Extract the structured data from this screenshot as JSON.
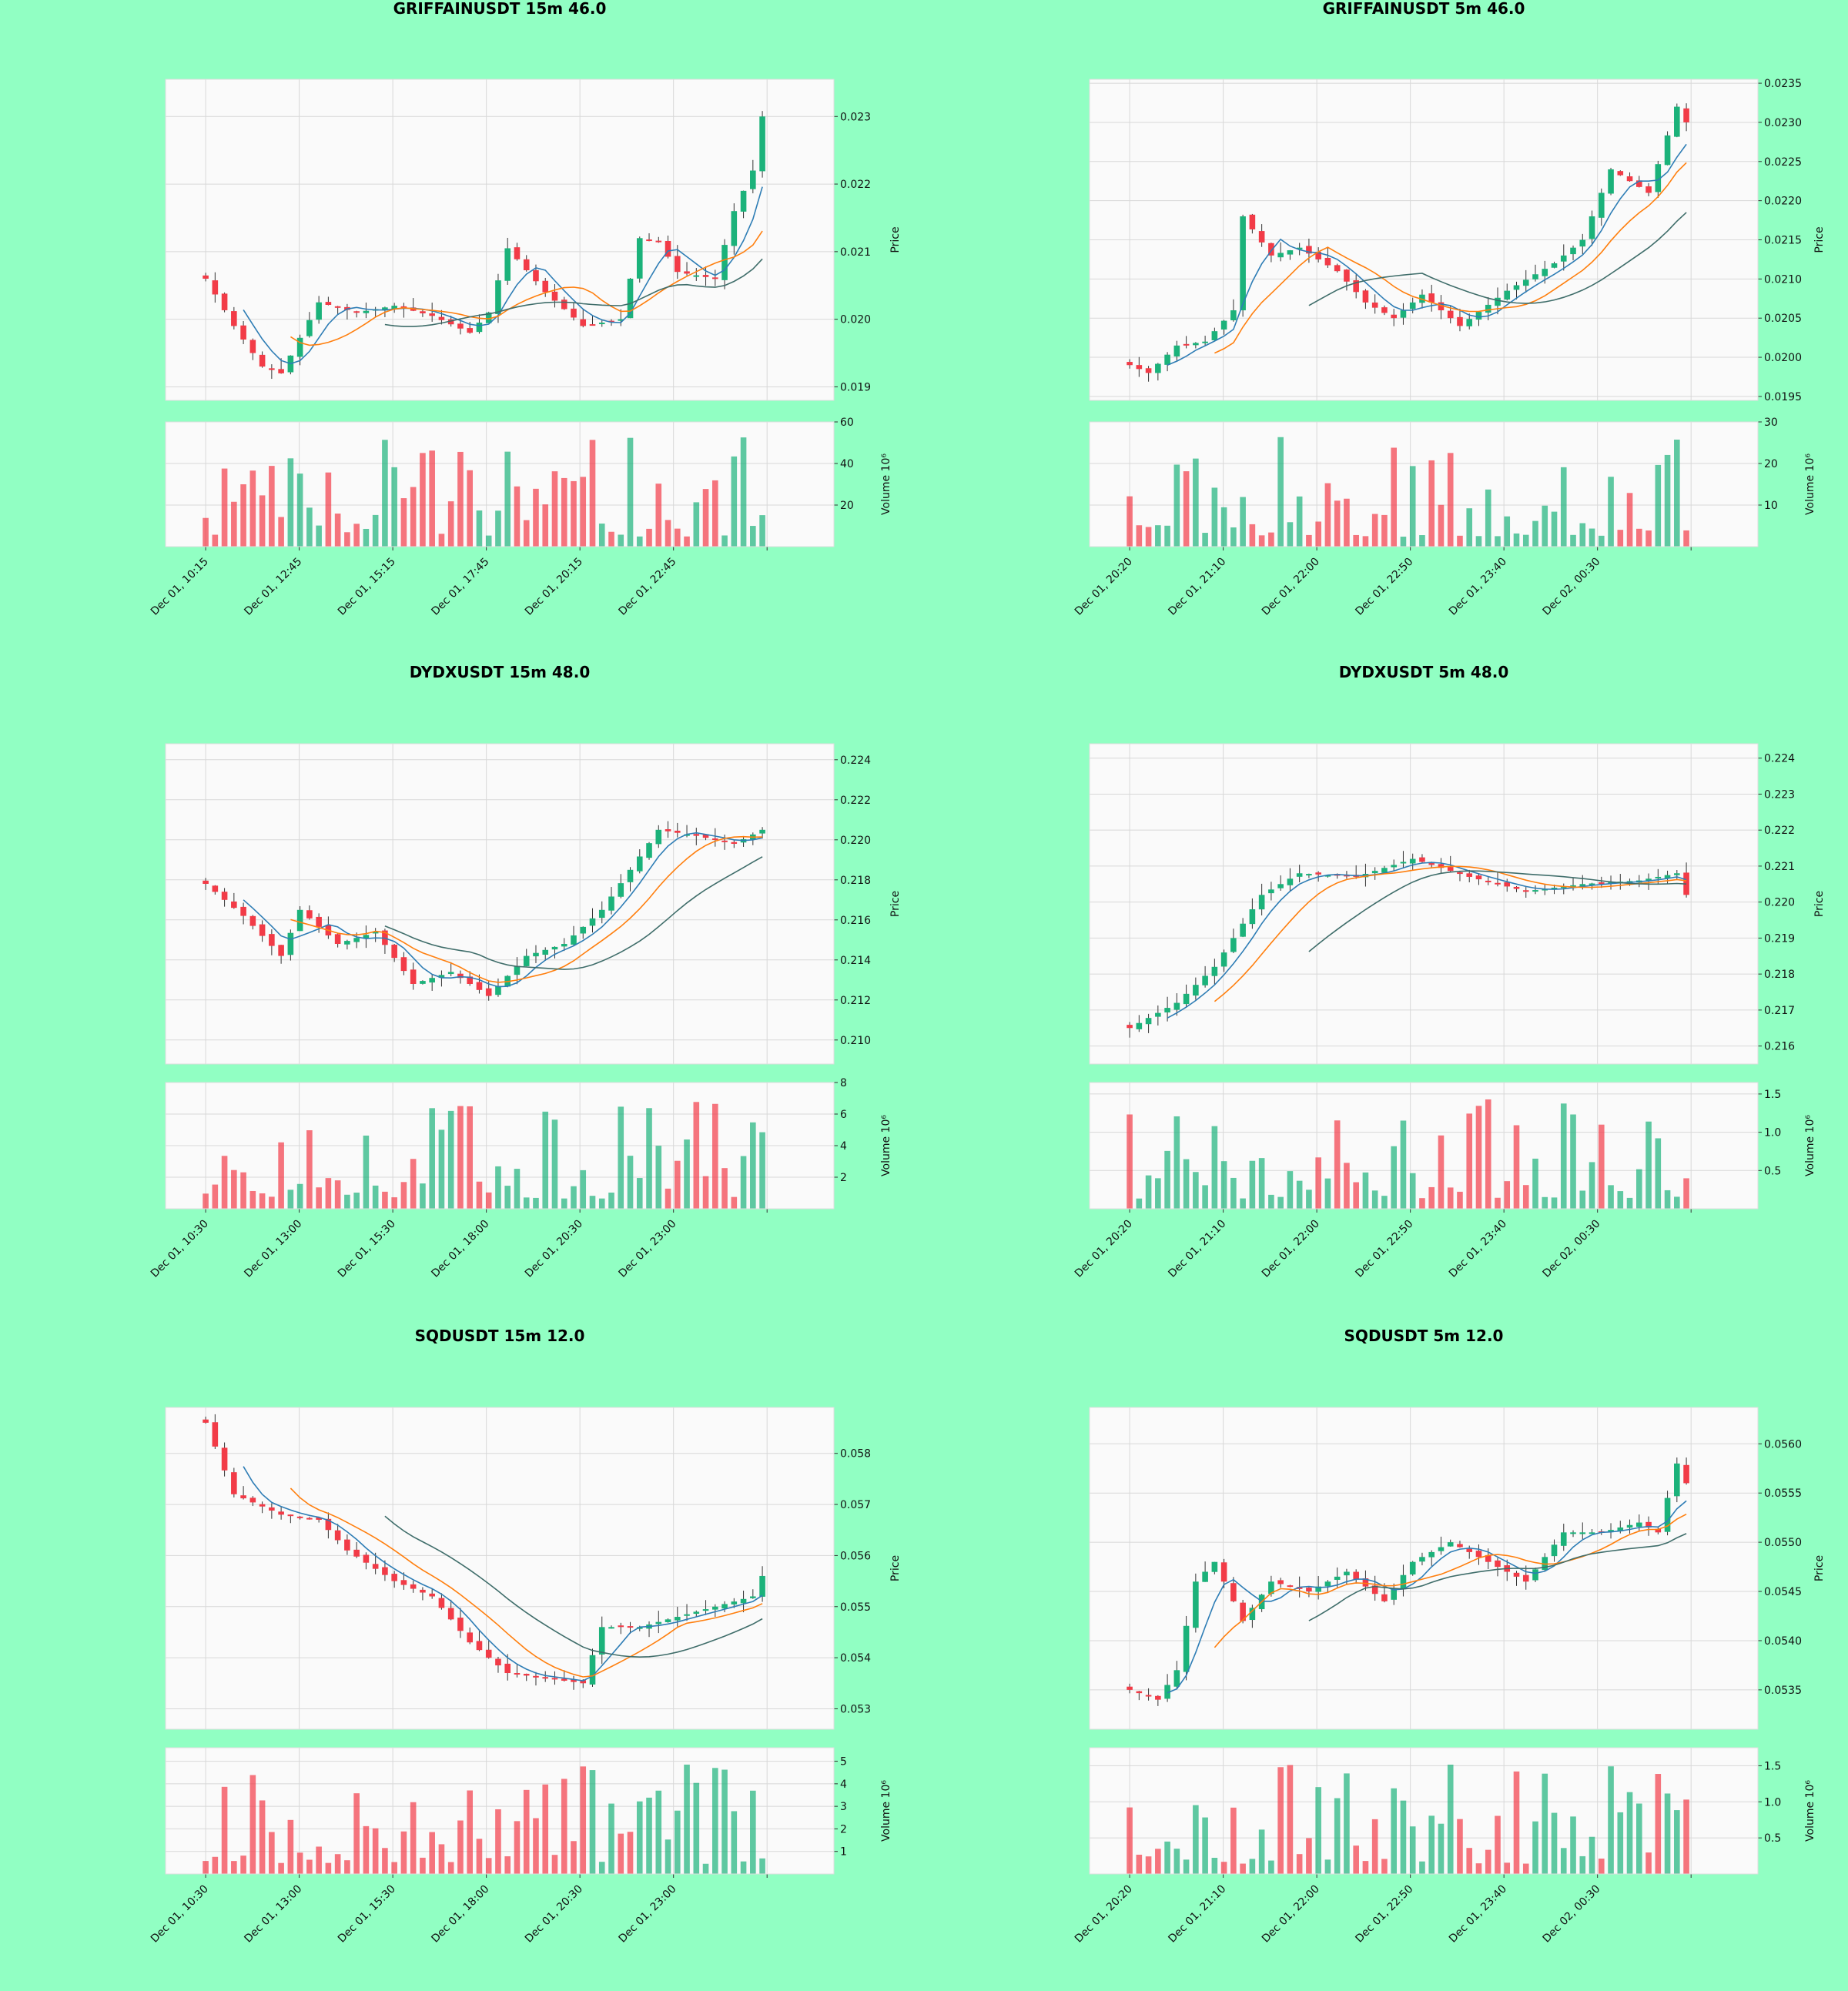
{
  "colors": {
    "background": "#91ffc3",
    "up": "#1bb27a",
    "down": "#f23b47",
    "ma_fast": "#2e7db5",
    "ma_mid": "#ff7f0e",
    "ma_slow": "#3f6d6a"
  },
  "chart_data": [
    {
      "type": "candlestick",
      "title": "GRIFFAINUSDT 15m 46.0",
      "ylabel": "Price",
      "vlabel": "Volume  10⁶",
      "xticks": [
        "Dec 01, 10:15",
        "Dec 01, 12:45",
        "Dec 01, 15:15",
        "Dec 01, 17:45",
        "Dec 01, 20:15",
        "Dec 01, 22:45"
      ],
      "yticks": [
        "0.019",
        "0.020",
        "0.021",
        "0.022",
        "0.023"
      ],
      "ylim": [
        0.0188,
        0.02355
      ],
      "vticks": [
        "20",
        "40",
        "60"
      ],
      "vlim": [
        0,
        60
      ],
      "n": 60,
      "waypoints": [
        [
          0,
          0.0206
        ],
        [
          3,
          0.0199
        ],
        [
          6,
          0.0193
        ],
        [
          8,
          0.0192
        ],
        [
          12,
          0.02025
        ],
        [
          16,
          0.0201
        ],
        [
          20,
          0.0202
        ],
        [
          24,
          0.02005
        ],
        [
          28,
          0.0198
        ],
        [
          30,
          0.0201
        ],
        [
          32,
          0.02105
        ],
        [
          36,
          0.0204
        ],
        [
          40,
          0.0199
        ],
        [
          44,
          0.02
        ],
        [
          46,
          0.0212
        ],
        [
          48,
          0.02115
        ],
        [
          50,
          0.0207
        ],
        [
          54,
          0.0206
        ],
        [
          56,
          0.0216
        ],
        [
          58,
          0.0222
        ],
        [
          59,
          0.023
        ]
      ],
      "vseed": 11
    },
    {
      "type": "candlestick",
      "title": "GRIFFAINUSDT 5m 46.0",
      "ylabel": "Price",
      "vlabel": "Volume  10⁶",
      "xticks": [
        "Dec 01, 20:20",
        "Dec 01, 21:10",
        "Dec 01, 22:00",
        "Dec 01, 22:50",
        "Dec 01, 23:40",
        "Dec 02, 00:30"
      ],
      "yticks": [
        "0.0195",
        "0.0200",
        "0.0205",
        "0.0210",
        "0.0215",
        "0.0220",
        "0.0225",
        "0.0230",
        "0.0235"
      ],
      "ylim": [
        0.01945,
        0.02355
      ],
      "vticks": [
        "10",
        "20",
        "30"
      ],
      "vlim": [
        0,
        30
      ],
      "n": 60,
      "waypoints": [
        [
          0,
          0.0199
        ],
        [
          2,
          0.0198
        ],
        [
          5,
          0.02015
        ],
        [
          8,
          0.0202
        ],
        [
          11,
          0.0206
        ],
        [
          12,
          0.0218
        ],
        [
          15,
          0.0213
        ],
        [
          18,
          0.0214
        ],
        [
          22,
          0.0211
        ],
        [
          25,
          0.0207
        ],
        [
          28,
          0.0205
        ],
        [
          31,
          0.0208
        ],
        [
          35,
          0.0204
        ],
        [
          40,
          0.02085
        ],
        [
          45,
          0.0212
        ],
        [
          48,
          0.0215
        ],
        [
          51,
          0.0224
        ],
        [
          55,
          0.0221
        ],
        [
          58,
          0.0232
        ],
        [
          59,
          0.023
        ]
      ],
      "vseed": 23
    },
    {
      "type": "candlestick",
      "title": "DYDXUSDT 15m 48.0",
      "ylabel": "Price",
      "vlabel": "Volume  10⁶",
      "xticks": [
        "Dec 01, 10:30",
        "Dec 01, 13:00",
        "Dec 01, 15:30",
        "Dec 01, 18:00",
        "Dec 01, 20:30",
        "Dec 01, 23:00"
      ],
      "yticks": [
        "0.210",
        "0.212",
        "0.214",
        "0.216",
        "0.218",
        "0.220",
        "0.222",
        "0.224"
      ],
      "ylim": [
        0.2088,
        0.2248
      ],
      "vticks": [
        "2",
        "4",
        "6",
        "8"
      ],
      "vlim": [
        0,
        8
      ],
      "n": 60,
      "waypoints": [
        [
          0,
          0.2178
        ],
        [
          4,
          0.2162
        ],
        [
          8,
          0.2142
        ],
        [
          10,
          0.2165
        ],
        [
          14,
          0.2148
        ],
        [
          18,
          0.2154
        ],
        [
          22,
          0.2128
        ],
        [
          26,
          0.2134
        ],
        [
          30,
          0.2122
        ],
        [
          34,
          0.2142
        ],
        [
          38,
          0.2148
        ],
        [
          42,
          0.2165
        ],
        [
          45,
          0.2185
        ],
        [
          48,
          0.2205
        ],
        [
          52,
          0.2202
        ],
        [
          56,
          0.2198
        ],
        [
          59,
          0.2205
        ]
      ],
      "vseed": 37
    },
    {
      "type": "candlestick",
      "title": "DYDXUSDT 5m 48.0",
      "ylabel": "Price",
      "vlabel": "Volume  10⁶",
      "xticks": [
        "Dec 01, 20:20",
        "Dec 01, 21:10",
        "Dec 01, 22:00",
        "Dec 01, 22:50",
        "Dec 01, 23:40",
        "Dec 02, 00:30"
      ],
      "yticks": [
        "0.216",
        "0.217",
        "0.218",
        "0.219",
        "0.220",
        "0.221",
        "0.222",
        "0.223",
        "0.224"
      ],
      "ylim": [
        0.2155,
        0.2244
      ],
      "vticks": [
        "0.5",
        "1.0",
        "1.5"
      ],
      "vlim": [
        0,
        1.65
      ],
      "n": 60,
      "waypoints": [
        [
          0,
          0.2165
        ],
        [
          5,
          0.2172
        ],
        [
          9,
          0.2182
        ],
        [
          14,
          0.2202
        ],
        [
          18,
          0.2208
        ],
        [
          24,
          0.2207
        ],
        [
          30,
          0.2212
        ],
        [
          36,
          0.2207
        ],
        [
          42,
          0.2203
        ],
        [
          48,
          0.2205
        ],
        [
          54,
          0.2206
        ],
        [
          58,
          0.2208
        ],
        [
          59,
          0.2202
        ]
      ],
      "vseed": 41
    },
    {
      "type": "candlestick",
      "title": "SQDUSDT 15m 12.0",
      "ylabel": "Price",
      "vlabel": "Volume  10⁶",
      "xticks": [
        "Dec 01, 10:30",
        "Dec 01, 13:00",
        "Dec 01, 15:30",
        "Dec 01, 18:00",
        "Dec 01, 20:30",
        "Dec 01, 23:00"
      ],
      "yticks": [
        "0.053",
        "0.054",
        "0.055",
        "0.056",
        "0.057",
        "0.058"
      ],
      "ylim": [
        0.0526,
        0.0589
      ],
      "vticks": [
        "1",
        "2",
        "3",
        "4",
        "5"
      ],
      "vlim": [
        0,
        5.6
      ],
      "n": 60,
      "waypoints": [
        [
          0,
          0.0586
        ],
        [
          3,
          0.0572
        ],
        [
          8,
          0.0568
        ],
        [
          12,
          0.0567
        ],
        [
          15,
          0.0561
        ],
        [
          20,
          0.0555
        ],
        [
          24,
          0.0552
        ],
        [
          28,
          0.0543
        ],
        [
          32,
          0.0537
        ],
        [
          36,
          0.0536
        ],
        [
          40,
          0.0535
        ],
        [
          42,
          0.0546
        ],
        [
          46,
          0.0546
        ],
        [
          50,
          0.0548
        ],
        [
          54,
          0.055
        ],
        [
          58,
          0.0552
        ],
        [
          59,
          0.0556
        ]
      ],
      "vseed": 53
    },
    {
      "type": "candlestick",
      "title": "SQDUSDT 5m 12.0",
      "ylabel": "Price",
      "vlabel": "Volume  10⁶",
      "xticks": [
        "Dec 01, 20:20",
        "Dec 01, 21:10",
        "Dec 01, 22:00",
        "Dec 01, 22:50",
        "Dec 01, 23:40",
        "Dec 02, 00:30"
      ],
      "yticks": [
        "0.0535",
        "0.0540",
        "0.0545",
        "0.0550",
        "0.0555",
        "0.0560"
      ],
      "ylim": [
        0.0531,
        0.05637
      ],
      "vticks": [
        "0.5",
        "1.0",
        "1.5"
      ],
      "vlim": [
        0,
        1.75
      ],
      "n": 60,
      "waypoints": [
        [
          0,
          0.0535
        ],
        [
          3,
          0.0534
        ],
        [
          5,
          0.0537
        ],
        [
          7,
          0.0546
        ],
        [
          9,
          0.0548
        ],
        [
          12,
          0.0542
        ],
        [
          15,
          0.0546
        ],
        [
          19,
          0.0545
        ],
        [
          23,
          0.0547
        ],
        [
          27,
          0.0544
        ],
        [
          30,
          0.0548
        ],
        [
          34,
          0.055
        ],
        [
          38,
          0.0548
        ],
        [
          42,
          0.0546
        ],
        [
          46,
          0.0551
        ],
        [
          50,
          0.0551
        ],
        [
          54,
          0.0552
        ],
        [
          56,
          0.0551
        ],
        [
          58,
          0.0558
        ],
        [
          59,
          0.0556
        ]
      ],
      "vseed": 67
    }
  ]
}
